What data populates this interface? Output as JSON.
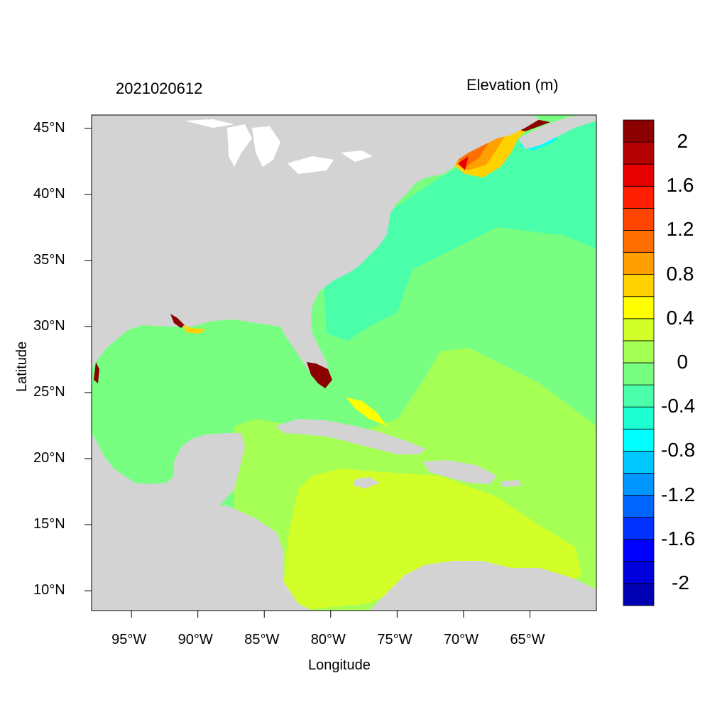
{
  "title_left": "2021020612",
  "title_right": "Elevation (m)",
  "xlabel": "Longitude",
  "ylabel": "Latitude",
  "map": {
    "lon_range": [
      -98,
      -60
    ],
    "lat_range": [
      8.5,
      46
    ],
    "x_ticks": [
      {
        "value": -95,
        "label": "95°W"
      },
      {
        "value": -90,
        "label": "90°W"
      },
      {
        "value": -85,
        "label": "85°W"
      },
      {
        "value": -80,
        "label": "80°W"
      },
      {
        "value": -75,
        "label": "75°W"
      },
      {
        "value": -70,
        "label": "70°W"
      },
      {
        "value": -65,
        "label": "65°W"
      }
    ],
    "y_ticks": [
      {
        "value": 45,
        "label": "45°N"
      },
      {
        "value": 40,
        "label": "40°N"
      },
      {
        "value": 35,
        "label": "35°N"
      },
      {
        "value": 30,
        "label": "30°N"
      },
      {
        "value": 25,
        "label": "25°N"
      },
      {
        "value": 20,
        "label": "20°N"
      },
      {
        "value": 15,
        "label": "15°N"
      },
      {
        "value": 10,
        "label": "10°N"
      }
    ],
    "land_color": "#d3d3d3"
  },
  "colorbar": {
    "levels": [
      -2.2,
      -2.0,
      -1.8,
      -1.6,
      -1.4,
      -1.2,
      -1.0,
      -0.8,
      -0.6,
      -0.4,
      -0.2,
      0.0,
      0.2,
      0.4,
      0.6,
      0.8,
      1.0,
      1.2,
      1.4,
      1.6,
      1.8,
      2.0,
      2.2
    ],
    "colors": [
      "#0000b4",
      "#0000dc",
      "#0000ff",
      "#0032ff",
      "#0064ff",
      "#0096ff",
      "#00c8ff",
      "#00ffff",
      "#1effd2",
      "#4bffaa",
      "#78ff82",
      "#a5ff55",
      "#d2ff28",
      "#ffff00",
      "#ffd200",
      "#ffa000",
      "#ff6e00",
      "#ff4600",
      "#ff1e00",
      "#e60000",
      "#b40000",
      "#8b0000"
    ],
    "labels": [
      {
        "value": 2,
        "text": "2"
      },
      {
        "value": 1.6,
        "text": "1.6"
      },
      {
        "value": 1.2,
        "text": "1.2"
      },
      {
        "value": 0.8,
        "text": "0.8"
      },
      {
        "value": 0.4,
        "text": "0.4"
      },
      {
        "value": 0,
        "text": "0"
      },
      {
        "value": -0.4,
        "text": "-0.4"
      },
      {
        "value": -0.8,
        "text": "-0.8"
      },
      {
        "value": -1.2,
        "text": "-1.2"
      },
      {
        "value": -1.6,
        "text": "-1.6"
      },
      {
        "value": -2,
        "text": "-2"
      }
    ]
  }
}
